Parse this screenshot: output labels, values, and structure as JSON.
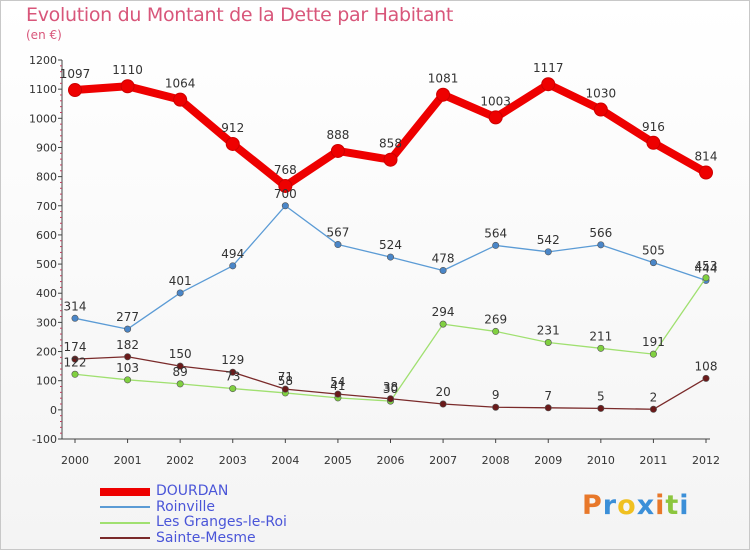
{
  "title": "Evolution du Montant de la Dette par Habitant",
  "subtitle": "(en €)",
  "logo": {
    "text": "Proxiti",
    "letter_colors": [
      "#e8782a",
      "#3b8fd8",
      "#f0c020",
      "#3b8fd8",
      "#e8782a",
      "#8cc63e",
      "#3b8fd8"
    ]
  },
  "chart_data": {
    "type": "line",
    "x": [
      "2000",
      "2001",
      "2002",
      "2003",
      "2004",
      "2005",
      "2006",
      "2007",
      "2008",
      "2009",
      "2010",
      "2011",
      "2012"
    ],
    "ylim": [
      -100,
      1200
    ],
    "yticks": [
      -100,
      0,
      100,
      200,
      300,
      400,
      500,
      600,
      700,
      800,
      900,
      1000,
      1100,
      1200
    ],
    "grid": false,
    "legend_position": "bottom-left",
    "series": [
      {
        "name": "DOURDAN",
        "color": "#ee0000",
        "marker_fill": "#ee0000",
        "emphasis": true,
        "values": [
          1097,
          1110,
          1064,
          912,
          768,
          888,
          858,
          1081,
          1003,
          1117,
          1030,
          916,
          814
        ]
      },
      {
        "name": "Roinville",
        "color": "#5b9bd5",
        "marker_fill": "#4a86c8",
        "values": [
          314,
          277,
          401,
          494,
          700,
          567,
          524,
          478,
          564,
          542,
          566,
          505,
          444
        ]
      },
      {
        "name": "Les Granges-le-Roi",
        "color": "#a0e070",
        "marker_fill": "#80d040",
        "values": [
          122,
          103,
          89,
          73,
          58,
          41,
          30,
          294,
          269,
          231,
          211,
          191,
          453
        ]
      },
      {
        "name": "Sainte-Mesme",
        "color": "#7a2a2a",
        "marker_fill": "#6a1a1a",
        "values": [
          174,
          182,
          150,
          129,
          71,
          54,
          38,
          20,
          9,
          7,
          5,
          2,
          108
        ]
      }
    ]
  }
}
